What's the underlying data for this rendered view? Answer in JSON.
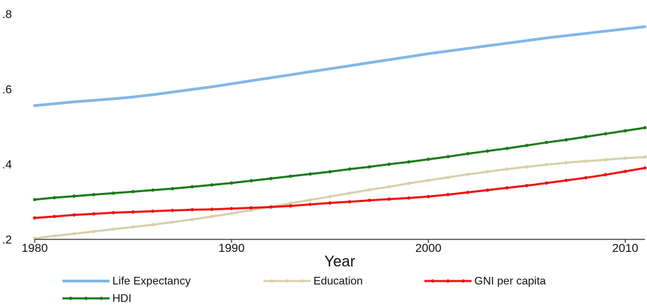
{
  "chart_data": {
    "type": "line",
    "xlabel": "Year",
    "ylabel": "",
    "xlim": [
      1980,
      2011
    ],
    "ylim": [
      0.2,
      0.8
    ],
    "xticks": [
      1980,
      1990,
      2000,
      2010
    ],
    "xtick_labels": [
      "1980",
      "1990",
      "2000",
      "2010"
    ],
    "yticks": [
      0.2,
      0.4,
      0.6,
      0.8
    ],
    "ytick_labels": [
      ".2",
      ".4",
      ".6",
      ".8"
    ],
    "grid": false,
    "legend_position": "bottom",
    "x": [
      1980,
      1981,
      1982,
      1983,
      1984,
      1985,
      1986,
      1987,
      1988,
      1989,
      1990,
      1991,
      1992,
      1993,
      1994,
      1995,
      1996,
      1997,
      1998,
      1999,
      2000,
      2001,
      2002,
      2003,
      2004,
      2005,
      2006,
      2007,
      2008,
      2009,
      2010,
      2011
    ],
    "series": [
      {
        "name": "Life Expectancy",
        "color": "#82b8e6",
        "marker": false,
        "values": [
          0.556,
          0.561,
          0.566,
          0.57,
          0.574,
          0.579,
          0.585,
          0.592,
          0.599,
          0.606,
          0.614,
          0.622,
          0.63,
          0.638,
          0.646,
          0.654,
          0.662,
          0.67,
          0.678,
          0.686,
          0.694,
          0.701,
          0.708,
          0.715,
          0.722,
          0.729,
          0.736,
          0.742,
          0.748,
          0.754,
          0.76,
          0.766
        ]
      },
      {
        "name": "Education",
        "color": "#d8cfa8",
        "marker": true,
        "values": [
          0.203,
          0.209,
          0.215,
          0.221,
          0.227,
          0.233,
          0.239,
          0.246,
          0.253,
          0.261,
          0.269,
          0.278,
          0.287,
          0.296,
          0.305,
          0.314,
          0.323,
          0.332,
          0.34,
          0.349,
          0.357,
          0.365,
          0.373,
          0.38,
          0.387,
          0.393,
          0.399,
          0.404,
          0.408,
          0.412,
          0.416,
          0.419
        ]
      },
      {
        "name": "GNI per capita",
        "color": "#ee1111",
        "marker": true,
        "values": [
          0.257,
          0.261,
          0.265,
          0.268,
          0.271,
          0.273,
          0.275,
          0.277,
          0.279,
          0.28,
          0.282,
          0.284,
          0.286,
          0.289,
          0.293,
          0.297,
          0.3,
          0.304,
          0.307,
          0.31,
          0.314,
          0.319,
          0.325,
          0.331,
          0.337,
          0.343,
          0.35,
          0.357,
          0.364,
          0.372,
          0.381,
          0.39
        ]
      },
      {
        "name": "HDI",
        "color": "#1a7a1a",
        "marker": true,
        "values": [
          0.306,
          0.311,
          0.315,
          0.319,
          0.323,
          0.327,
          0.331,
          0.335,
          0.34,
          0.345,
          0.35,
          0.356,
          0.362,
          0.368,
          0.374,
          0.38,
          0.387,
          0.393,
          0.4,
          0.406,
          0.413,
          0.42,
          0.428,
          0.435,
          0.442,
          0.45,
          0.458,
          0.465,
          0.473,
          0.481,
          0.489,
          0.497
        ]
      }
    ]
  }
}
